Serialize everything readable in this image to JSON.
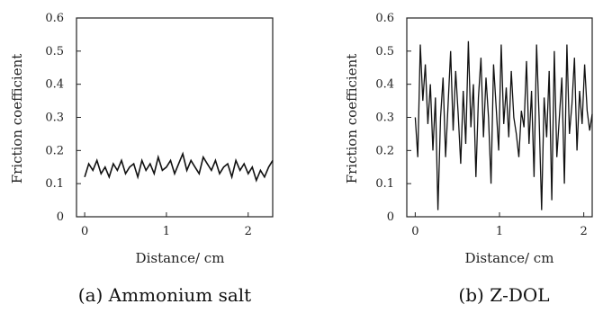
{
  "chart_data": [
    {
      "type": "line",
      "caption": "(a) Ammonium salt",
      "xlabel": "Distance/ cm",
      "ylabel": "Friction coefficient",
      "xlim": [
        -0.1,
        2.3
      ],
      "ylim": [
        0,
        0.6
      ],
      "xticks": [
        "0",
        "1",
        "2"
      ],
      "xtick_values": [
        0,
        1,
        2
      ],
      "yticks": [
        "0",
        "0.1",
        "0.2",
        "0.3",
        "0.4",
        "0.5",
        "0.6"
      ],
      "ytick_values": [
        0,
        0.1,
        0.2,
        0.3,
        0.4,
        0.5,
        0.6
      ],
      "series": [
        {
          "x": [
            0.0,
            0.05,
            0.1,
            0.15,
            0.2,
            0.25,
            0.3,
            0.35,
            0.4,
            0.45,
            0.5,
            0.55,
            0.6,
            0.65,
            0.7,
            0.75,
            0.8,
            0.85,
            0.9,
            0.95,
            1.0,
            1.05,
            1.1,
            1.15,
            1.2,
            1.25,
            1.3,
            1.35,
            1.4,
            1.45,
            1.5,
            1.55,
            1.6,
            1.65,
            1.7,
            1.75,
            1.8,
            1.85,
            1.9,
            1.95,
            2.0,
            2.05,
            2.1,
            2.15,
            2.2,
            2.25,
            2.3
          ],
          "y": [
            0.12,
            0.16,
            0.14,
            0.17,
            0.13,
            0.15,
            0.12,
            0.16,
            0.14,
            0.17,
            0.13,
            0.15,
            0.16,
            0.12,
            0.17,
            0.14,
            0.16,
            0.13,
            0.18,
            0.14,
            0.15,
            0.17,
            0.13,
            0.16,
            0.19,
            0.14,
            0.17,
            0.15,
            0.13,
            0.18,
            0.16,
            0.14,
            0.17,
            0.13,
            0.15,
            0.16,
            0.12,
            0.17,
            0.14,
            0.16,
            0.13,
            0.15,
            0.11,
            0.14,
            0.12,
            0.15,
            0.17
          ]
        }
      ]
    },
    {
      "type": "line",
      "caption": "(b) Z-DOL",
      "xlabel": "Distance/ cm",
      "ylabel": "Friction coefficient",
      "xlim": [
        -0.1,
        2.1
      ],
      "ylim": [
        0,
        0.6
      ],
      "xticks": [
        "0",
        "1",
        "2"
      ],
      "xtick_values": [
        0,
        1,
        2
      ],
      "yticks": [
        "0",
        "0.1",
        "0.2",
        "0.3",
        "0.4",
        "0.5",
        "0.6"
      ],
      "ytick_values": [
        0,
        0.1,
        0.2,
        0.3,
        0.4,
        0.5,
        0.6
      ],
      "series": [
        {
          "x": [
            0.0,
            0.03,
            0.06,
            0.09,
            0.12,
            0.15,
            0.18,
            0.21,
            0.24,
            0.27,
            0.3,
            0.33,
            0.36,
            0.39,
            0.42,
            0.45,
            0.48,
            0.51,
            0.54,
            0.57,
            0.6,
            0.63,
            0.66,
            0.69,
            0.72,
            0.75,
            0.78,
            0.81,
            0.84,
            0.87,
            0.9,
            0.93,
            0.96,
            0.99,
            1.02,
            1.05,
            1.08,
            1.11,
            1.14,
            1.17,
            1.2,
            1.23,
            1.26,
            1.29,
            1.32,
            1.35,
            1.38,
            1.41,
            1.44,
            1.47,
            1.5,
            1.53,
            1.56,
            1.59,
            1.62,
            1.65,
            1.68,
            1.71,
            1.74,
            1.77,
            1.8,
            1.83,
            1.86,
            1.89,
            1.92,
            1.95,
            1.98,
            2.01,
            2.04,
            2.07,
            2.1
          ],
          "y": [
            0.3,
            0.18,
            0.52,
            0.35,
            0.46,
            0.28,
            0.4,
            0.2,
            0.36,
            0.02,
            0.3,
            0.42,
            0.18,
            0.34,
            0.5,
            0.26,
            0.44,
            0.31,
            0.16,
            0.38,
            0.22,
            0.53,
            0.27,
            0.4,
            0.12,
            0.36,
            0.48,
            0.24,
            0.42,
            0.3,
            0.1,
            0.46,
            0.33,
            0.2,
            0.52,
            0.28,
            0.39,
            0.24,
            0.44,
            0.3,
            0.25,
            0.18,
            0.32,
            0.27,
            0.47,
            0.22,
            0.38,
            0.12,
            0.52,
            0.3,
            0.02,
            0.36,
            0.24,
            0.44,
            0.05,
            0.5,
            0.18,
            0.3,
            0.42,
            0.1,
            0.52,
            0.25,
            0.34,
            0.48,
            0.2,
            0.38,
            0.28,
            0.46,
            0.32,
            0.26,
            0.31
          ]
        }
      ]
    }
  ]
}
